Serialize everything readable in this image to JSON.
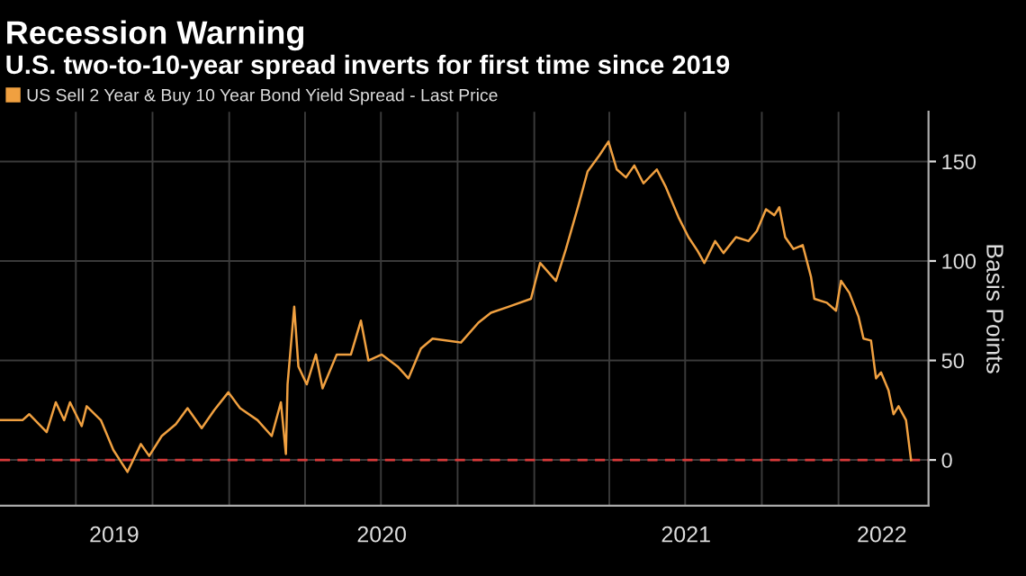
{
  "chart_data": {
    "type": "line",
    "title": "Recession Warning",
    "subtitle": "U.S. two-to-10-year spread inverts for first time since 2019",
    "ylabel": "Basis Points",
    "legend": "top left",
    "grid": true,
    "line_style": "solid",
    "marker": "none",
    "x": [
      "2019-04-01",
      "2019-04-28",
      "2019-05-06",
      "2019-05-27",
      "2019-06-07",
      "2019-06-17",
      "2019-06-24",
      "2019-07-08",
      "2019-07-14",
      "2019-07-31",
      "2019-08-15",
      "2019-09-01",
      "2019-09-17",
      "2019-09-27",
      "2019-10-12",
      "2019-10-29",
      "2019-11-12",
      "2019-11-29",
      "2019-12-14",
      "2019-12-31",
      "2020-01-14",
      "2020-02-04",
      "2020-02-21",
      "2020-03-03",
      "2020-03-09",
      "2020-03-11",
      "2020-03-19",
      "2020-03-24",
      "2020-04-03",
      "2020-04-14",
      "2020-04-22",
      "2020-05-09",
      "2020-05-26",
      "2020-06-07",
      "2020-06-16",
      "2020-07-02",
      "2020-07-21",
      "2020-08-03",
      "2020-08-18",
      "2020-09-01",
      "2020-10-05",
      "2020-10-26",
      "2020-11-10",
      "2020-12-01",
      "2020-12-28",
      "2021-01-08",
      "2021-01-27",
      "2021-02-08",
      "2021-02-23",
      "2021-03-06",
      "2021-03-20",
      "2021-03-31",
      "2021-04-10",
      "2021-04-21",
      "2021-05-01",
      "2021-05-12",
      "2021-05-28",
      "2021-06-08",
      "2021-06-23",
      "2021-07-05",
      "2021-07-16",
      "2021-07-24",
      "2021-08-06",
      "2021-08-16",
      "2021-08-31",
      "2021-09-15",
      "2021-09-25",
      "2021-10-06",
      "2021-10-16",
      "2021-10-22",
      "2021-10-29",
      "2021-11-08",
      "2021-11-19",
      "2021-11-29",
      "2021-12-03",
      "2021-12-18",
      "2021-12-29",
      "2022-01-04",
      "2022-01-14",
      "2022-01-25",
      "2022-01-31",
      "2022-02-09",
      "2022-02-15",
      "2022-02-21",
      "2022-03-02",
      "2022-03-08",
      "2022-03-14",
      "2022-03-23",
      "2022-03-29"
    ],
    "series": [
      {
        "name": "US Sell 2 Year & Buy 10 Year Bond Yield Spread - Last Price",
        "color": "#f0a040",
        "values": [
          20,
          20,
          23,
          14,
          29,
          20,
          29,
          17,
          27,
          20,
          5,
          -6,
          8,
          2,
          12,
          18,
          26,
          16,
          25,
          34,
          26,
          20,
          12,
          29,
          3,
          38,
          77,
          47,
          38,
          53,
          36,
          53,
          53,
          70,
          50,
          53,
          47,
          41,
          56,
          61,
          59,
          69,
          74,
          77,
          81,
          99,
          90,
          106,
          128,
          145,
          153,
          160,
          146,
          142,
          148,
          139,
          146,
          137,
          122,
          112,
          105,
          99,
          110,
          104,
          112,
          110,
          115,
          126,
          123,
          127,
          112,
          106,
          108,
          92,
          81,
          79,
          75,
          90,
          84,
          72,
          61,
          60,
          41,
          44,
          35,
          23,
          27,
          20,
          0
        ]
      }
    ],
    "xlim": [
      "2019-04-01",
      "2022-04-19"
    ],
    "xticks": [
      {
        "value": "2019-07-01",
        "label": null
      },
      {
        "value": "2019-10-01",
        "label": null
      },
      {
        "value": "2020-01-01",
        "label": null
      },
      {
        "value": "2020-04-01",
        "label": null
      },
      {
        "value": "2020-07-01",
        "label": null
      },
      {
        "value": "2020-10-01",
        "label": null
      },
      {
        "value": "2021-01-01",
        "label": null
      },
      {
        "value": "2021-04-01",
        "label": null
      },
      {
        "value": "2021-07-01",
        "label": null
      },
      {
        "value": "2021-10-01",
        "label": null
      },
      {
        "value": "2022-01-01",
        "label": null
      },
      {
        "value": "2019-08-16",
        "label": "2019"
      },
      {
        "value": "2020-07-02",
        "label": "2020"
      },
      {
        "value": "2021-07-02",
        "label": "2021"
      },
      {
        "value": "2022-02-22",
        "label": "2022"
      }
    ],
    "ylim": [
      -23,
      175
    ],
    "yticks": [
      0,
      50,
      100,
      150
    ],
    "ref_lines": [
      {
        "axis": "y",
        "value": 0,
        "color": "#d83a3a",
        "line_style": "dashed"
      }
    ]
  }
}
